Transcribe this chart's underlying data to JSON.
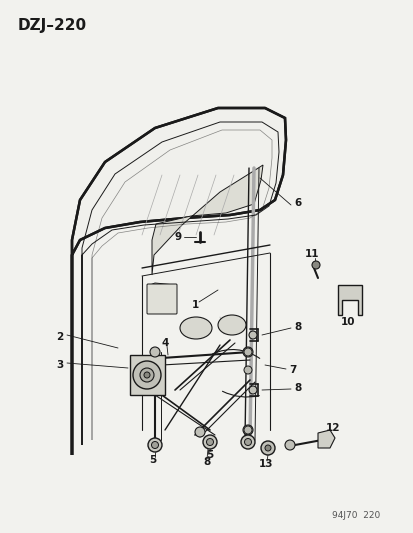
{
  "title": "DZJ–220",
  "bg_color": "#f2f2ee",
  "line_color": "#1a1a1a",
  "text_color": "#1a1a1a",
  "footer_text": "94J70  220",
  "fig_w": 4.14,
  "fig_h": 5.33,
  "dpi": 100
}
